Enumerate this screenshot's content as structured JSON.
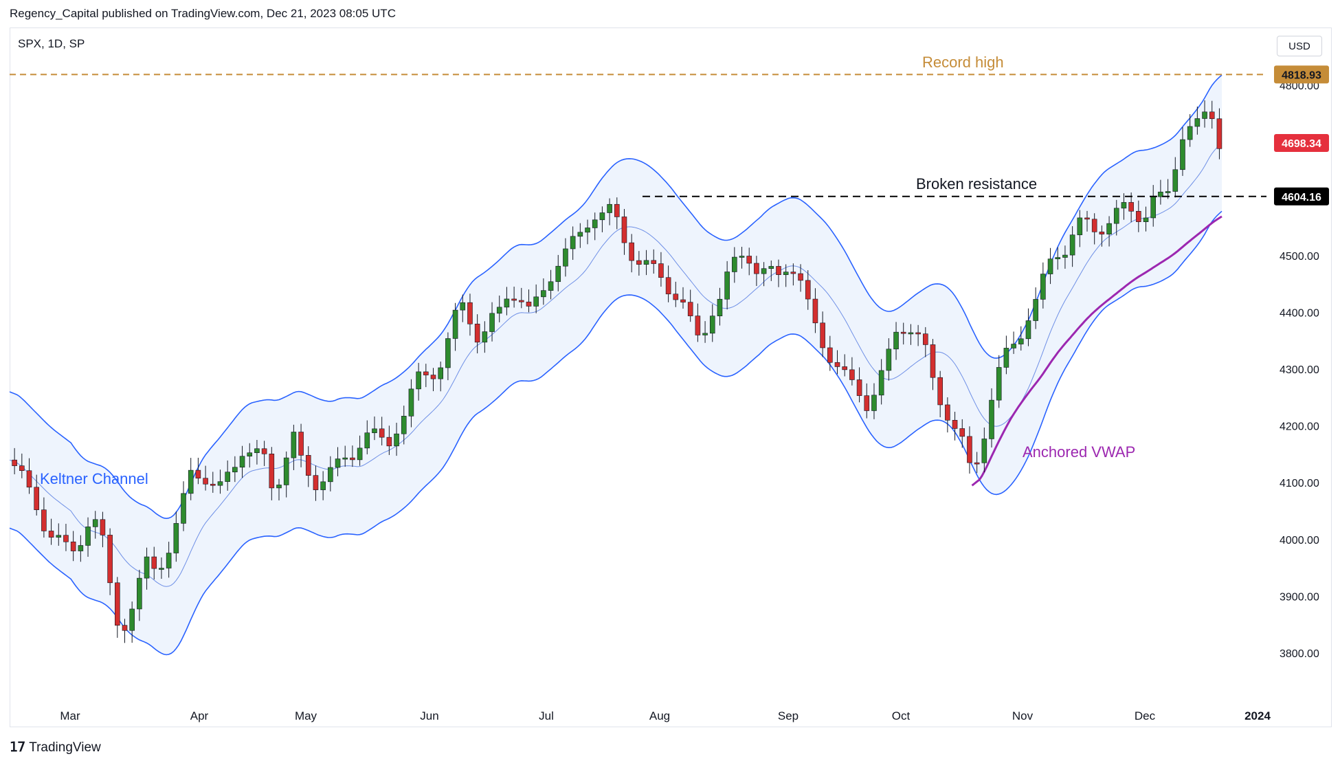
{
  "header": {
    "publisher": "Regency_Capital published on TradingView.com, Dec 21, 2023 08:05 UTC"
  },
  "symbol": {
    "label": "SPX, 1D, SP"
  },
  "currency": {
    "label": "USD"
  },
  "footer": {
    "brand": "TradingView"
  },
  "colors": {
    "up": "#2e8b2e",
    "down": "#d32f2f",
    "keltner": "#2962ff",
    "channel_fill": "#eef4fd",
    "vwap": "#9c27b0",
    "record": "#c58c38",
    "resistance": "#000000",
    "price_tag": "#e5303d"
  },
  "annotations": {
    "record_high": "Record high",
    "broken_resistance": "Broken resistance",
    "keltner_channel": "Keltner Channel",
    "anchored_vwap": "Anchored VWAP"
  },
  "price_labels": {
    "record": "4818.93",
    "last": "4698.34",
    "resistance": "4604.16"
  },
  "chart_data": {
    "type": "candlestick",
    "y_ticks": [
      "4800.00",
      "4500.00",
      "4400.00",
      "4300.00",
      "4200.00",
      "4100.00",
      "4000.00",
      "3900.00",
      "3800.00"
    ],
    "x_ticks": [
      "Mar",
      "Apr",
      "May",
      "Jun",
      "Jul",
      "Aug",
      "Sep",
      "Oct",
      "Nov",
      "Dec",
      "2024"
    ],
    "horizontal_levels": [
      {
        "name": "Record high",
        "value": 4818.93
      },
      {
        "name": "Broken resistance",
        "value": 4604.16
      }
    ],
    "last_price": 4698.34,
    "ylim": [
      3735,
      4850
    ],
    "close_path": [
      [
        0,
        4140
      ],
      [
        3,
        4130
      ],
      [
        8,
        4080
      ],
      [
        15,
        4020
      ],
      [
        20,
        4000
      ],
      [
        25,
        3970
      ],
      [
        28,
        3990
      ],
      [
        33,
        4045
      ],
      [
        37,
        4020
      ],
      [
        42,
        3890
      ],
      [
        45,
        3840
      ],
      [
        48,
        3860
      ],
      [
        52,
        3900
      ],
      [
        55,
        3960
      ],
      [
        60,
        3950
      ],
      [
        63,
        3970
      ],
      [
        66,
        3990
      ],
      [
        70,
        4050
      ],
      [
        74,
        4120
      ],
      [
        78,
        4120
      ],
      [
        85,
        4080
      ],
      [
        90,
        4120
      ],
      [
        95,
        4160
      ],
      [
        100,
        4150
      ],
      [
        104,
        4140
      ],
      [
        108,
        4080
      ],
      [
        112,
        4140
      ],
      [
        116,
        4180
      ],
      [
        120,
        4120
      ],
      [
        125,
        4100
      ],
      [
        130,
        4120
      ],
      [
        135,
        4130
      ],
      [
        140,
        4150
      ],
      [
        145,
        4190
      ],
      [
        150,
        4180
      ],
      [
        154,
        4160
      ],
      [
        158,
        4200
      ],
      [
        162,
        4230
      ],
      [
        166,
        4280
      ],
      [
        170,
        4290
      ],
      [
        175,
        4300
      ],
      [
        180,
        4360
      ],
      [
        184,
        4420
      ],
      [
        188,
        4390
      ],
      [
        192,
        4350
      ],
      [
        196,
        4380
      ],
      [
        200,
        4400
      ],
      [
        204,
        4440
      ],
      [
        208,
        4430
      ],
      [
        212,
        4400
      ],
      [
        216,
        4420
      ],
      [
        220,
        4460
      ],
      [
        224,
        4490
      ],
      [
        228,
        4510
      ],
      [
        232,
        4530
      ],
      [
        236,
        4560
      ],
      [
        240,
        4580
      ],
      [
        243,
        4570
      ],
      [
        246,
        4580
      ],
      [
        248,
        4560
      ],
      [
        252,
        4520
      ],
      [
        256,
        4490
      ],
      [
        260,
        4480
      ],
      [
        265,
        4470
      ],
      [
        270,
        4440
      ],
      [
        274,
        4420
      ],
      [
        278,
        4380
      ],
      [
        282,
        4350
      ],
      [
        286,
        4400
      ],
      [
        290,
        4420
      ],
      [
        294,
        4470
      ],
      [
        298,
        4510
      ],
      [
        302,
        4500
      ],
      [
        306,
        4460
      ],
      [
        310,
        4470
      ],
      [
        314,
        4470
      ],
      [
        318,
        4490
      ],
      [
        322,
        4460
      ],
      [
        326,
        4410
      ],
      [
        330,
        4370
      ],
      [
        334,
        4330
      ],
      [
        338,
        4300
      ],
      [
        342,
        4280
      ],
      [
        346,
        4270
      ],
      [
        350,
        4240
      ],
      [
        354,
        4260
      ],
      [
        358,
        4310
      ],
      [
        362,
        4370
      ],
      [
        366,
        4380
      ],
      [
        370,
        4360
      ],
      [
        374,
        4330
      ],
      [
        378,
        4270
      ],
      [
        382,
        4230
      ],
      [
        386,
        4190
      ],
      [
        390,
        4160
      ],
      [
        392,
        4130
      ],
      [
        396,
        4150
      ],
      [
        400,
        4230
      ],
      [
        404,
        4290
      ],
      [
        408,
        4340
      ],
      [
        412,
        4360
      ],
      [
        416,
        4390
      ],
      [
        420,
        4420
      ],
      [
        424,
        4490
      ],
      [
        428,
        4510
      ],
      [
        432,
        4510
      ],
      [
        436,
        4550
      ],
      [
        440,
        4560
      ],
      [
        444,
        4550
      ],
      [
        448,
        4550
      ],
      [
        452,
        4570
      ],
      [
        456,
        4590
      ],
      [
        460,
        4580
      ],
      [
        463,
        4560
      ],
      [
        466,
        4590
      ],
      [
        470,
        4600
      ],
      [
        474,
        4620
      ],
      [
        478,
        4710
      ],
      [
        482,
        4720
      ],
      [
        486,
        4730
      ],
      [
        490,
        4770
      ],
      [
        494,
        4700
      ]
    ],
    "record_high": 4818.93,
    "resistance": 4604.16
  }
}
